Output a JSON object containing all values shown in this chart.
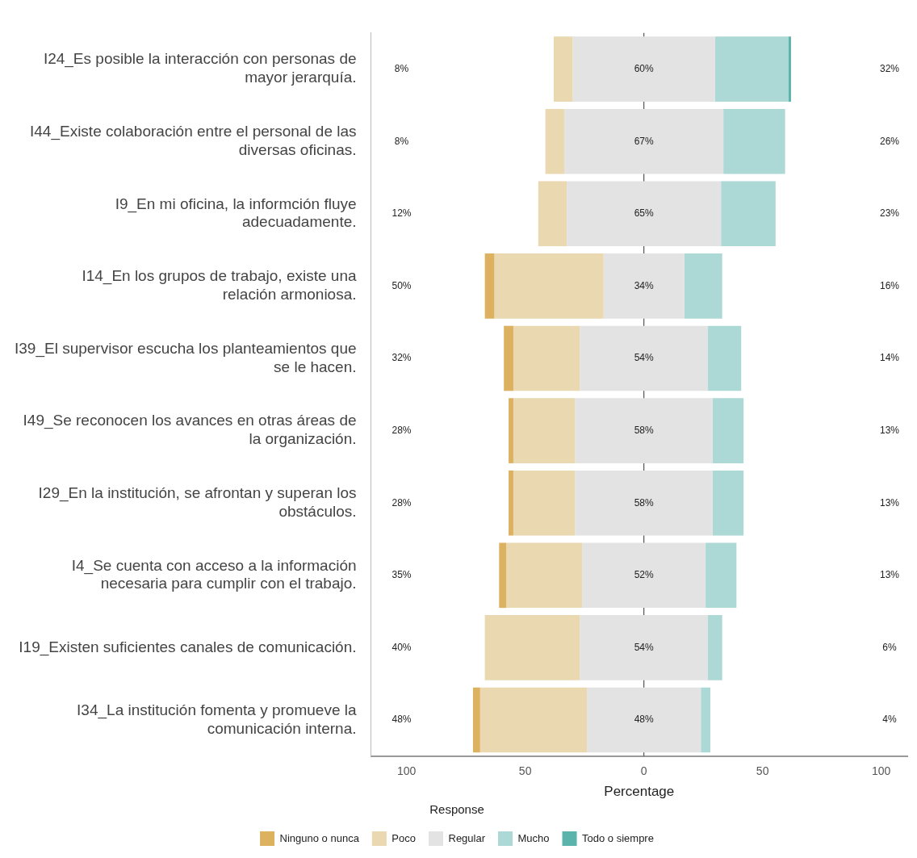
{
  "chart_data": {
    "type": "bar",
    "orientation": "horizontal",
    "xlabel": "Percentage",
    "legend_title": "Response",
    "legend": "bottom",
    "grid": false,
    "categories": [
      "I24_Es posible la interacción con personas de mayor jerarquía.",
      "I44_Existe colaboración entre el personal de las diversas oficinas.",
      "I9_En mi oficina, la informción fluye adecuadamente.",
      "I14_En los grupos de trabajo, existe una relación armoniosa.",
      "I39_El supervisor escucha los planteamientos que se le hacen.",
      "I49_Se reconocen los avances en otras áreas de la organización.",
      "I29_En la institución, se afrontan y superan los obstáculos.",
      "I4_Se cuenta con acceso a la información necesaria para cumplir con el trabajo.",
      "I19_Existen suficientes canales de comunicación.",
      "I34_La institución fomenta y promueve la comunicación interna."
    ],
    "xlim": [
      -115,
      111
    ],
    "xticks": [
      {
        "value": -100,
        "label": "100"
      },
      {
        "value": -50,
        "label": "50"
      },
      0,
      50,
      100
    ],
    "ref_lines": [
      {
        "axis": "x",
        "value": 0,
        "color": "#555555"
      }
    ],
    "series": [
      {
        "name": "Ninguno o nunca",
        "color": "#dcb160",
        "values": [
          null,
          null,
          null,
          4,
          4,
          2,
          2,
          3,
          null,
          3
        ],
        "base": [
          null,
          null,
          null,
          -67,
          -59,
          -57,
          -57,
          -61,
          null,
          -72
        ]
      },
      {
        "name": "Poco",
        "color": "#e9d8b0",
        "values": [
          8,
          8,
          12,
          46,
          28,
          26,
          26,
          32,
          40,
          45
        ],
        "base": [
          -38,
          -41.5,
          -44.5,
          -63,
          -55,
          -55,
          -55,
          -58,
          -67,
          -69
        ]
      },
      {
        "name": "Regular",
        "color": "#e3e3e3",
        "values": [
          60,
          67,
          65,
          34,
          54,
          58,
          58,
          52,
          54,
          48
        ],
        "base": [
          -30,
          -33.5,
          -32.5,
          -17,
          -27,
          -29,
          -29,
          -26,
          -27,
          -24
        ],
        "value_labels": [
          "60%",
          "67%",
          "65%",
          "34%",
          "54%",
          "58%",
          "58%",
          "52%",
          "54%",
          "48%"
        ]
      },
      {
        "name": "Mucho",
        "color": "#acd8d6",
        "values": [
          31,
          26,
          23,
          16,
          14,
          13,
          13,
          13,
          6,
          4
        ],
        "base": [
          30,
          33.5,
          32.5,
          17,
          27,
          29,
          29,
          26,
          27,
          24
        ]
      },
      {
        "name": "Todo o siempre",
        "color": "#5ab4ac",
        "values": [
          1,
          null,
          null,
          null,
          null,
          null,
          null,
          null,
          null,
          null
        ],
        "base": [
          61,
          null,
          null,
          null,
          null,
          null,
          null,
          null,
          null,
          null
        ]
      }
    ],
    "annotations": [
      "8%",
      "8%",
      "12%",
      "50%",
      "32%",
      "28%",
      "28%",
      "35%",
      "40%",
      "48%",
      "32%",
      "26%",
      "23%",
      "16%",
      "14%",
      "13%",
      "13%",
      "13%",
      "6%",
      "4%"
    ]
  }
}
